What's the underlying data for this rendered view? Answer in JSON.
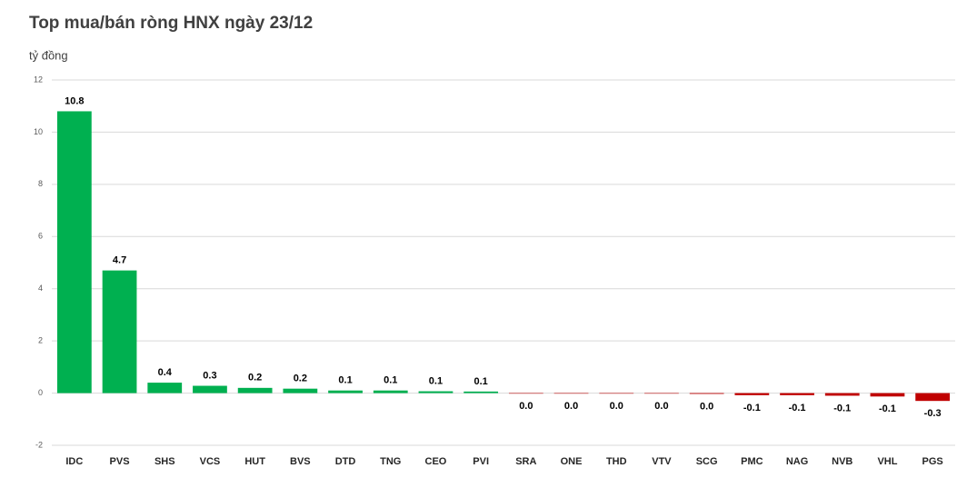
{
  "chart_data": {
    "type": "bar",
    "title": "Top mua/bán ròng HNX ngày 23/12",
    "y_axis_label": "tỷ đồng",
    "categories": [
      "IDC",
      "PVS",
      "SHS",
      "VCS",
      "HUT",
      "BVS",
      "DTD",
      "TNG",
      "CEO",
      "PVI",
      "SRA",
      "ONE",
      "THD",
      "VTV",
      "SCG",
      "PMC",
      "NAG",
      "NVB",
      "VHL",
      "PGS"
    ],
    "values": [
      10.8,
      4.7,
      0.4,
      0.28,
      0.2,
      0.17,
      0.1,
      0.1,
      0.07,
      0.06,
      -0.02,
      -0.02,
      -0.02,
      -0.02,
      -0.03,
      -0.08,
      -0.08,
      -0.1,
      -0.13,
      -0.3
    ],
    "value_labels": [
      "10.8",
      "4.7",
      "0.4",
      "0.3",
      "0.2",
      "0.2",
      "0.1",
      "0.1",
      "0.1",
      "0.1",
      "0.0",
      "0.0",
      "0.0",
      "0.0",
      "0.0",
      "-0.1",
      "-0.1",
      "-0.1",
      "-0.1",
      "-0.3"
    ],
    "positive_color": "#00b050",
    "negative_color": "#c00000",
    "ylim": [
      -2,
      12
    ],
    "yticks": [
      -2,
      0,
      2,
      4,
      6,
      8,
      10,
      12
    ],
    "grid": true
  }
}
